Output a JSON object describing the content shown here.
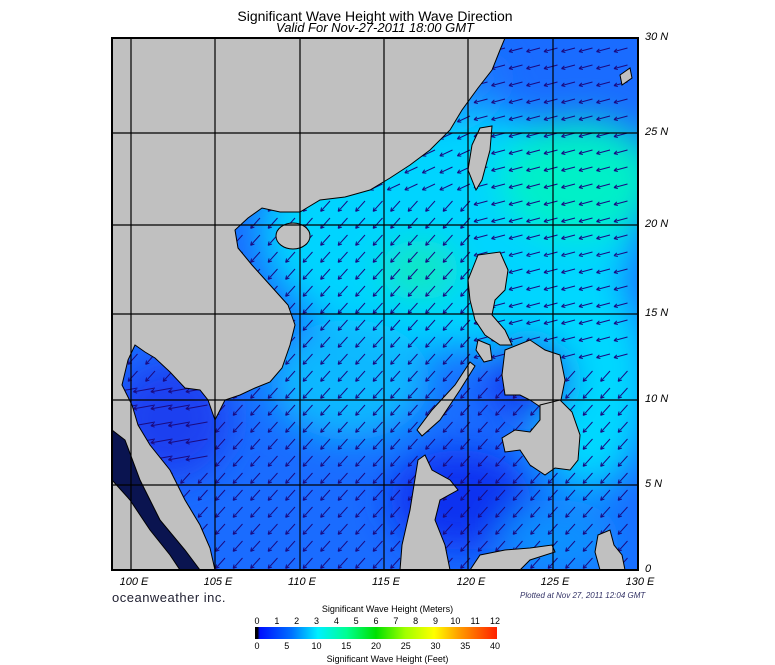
{
  "header": {
    "title": "Significant Wave Height with Wave Direction",
    "subtitle": "Valid For Nov-27-2011 18:00 GMT"
  },
  "axes": {
    "lat_labels": [
      "30 N",
      "25 N",
      "20 N",
      "15 N",
      "10 N",
      "5 N",
      "0"
    ],
    "lon_labels": [
      "100 E",
      "105 E",
      "110 E",
      "115 E",
      "120 E",
      "125 E",
      "130 E"
    ]
  },
  "footer": {
    "brand": "oceanweather inc.",
    "plotted": "Plotted at Nov 27, 2011 12:04 GMT"
  },
  "colorbar": {
    "title_meters": "Significant Wave Height (Meters)",
    "title_feet": "Significant Wave Height (Feet)",
    "meters_ticks": [
      "0",
      "1",
      "2",
      "3",
      "4",
      "5",
      "6",
      "7",
      "8",
      "9",
      "10",
      "11",
      "12"
    ],
    "feet_ticks": [
      "0",
      "5",
      "10",
      "15",
      "20",
      "25",
      "30",
      "35",
      "40"
    ]
  },
  "colors": {
    "land": "#c0c0c0",
    "ocean_low": "#1440ff",
    "ocean_mid": "#00d8ff",
    "arrow": "#1a0a80"
  }
}
